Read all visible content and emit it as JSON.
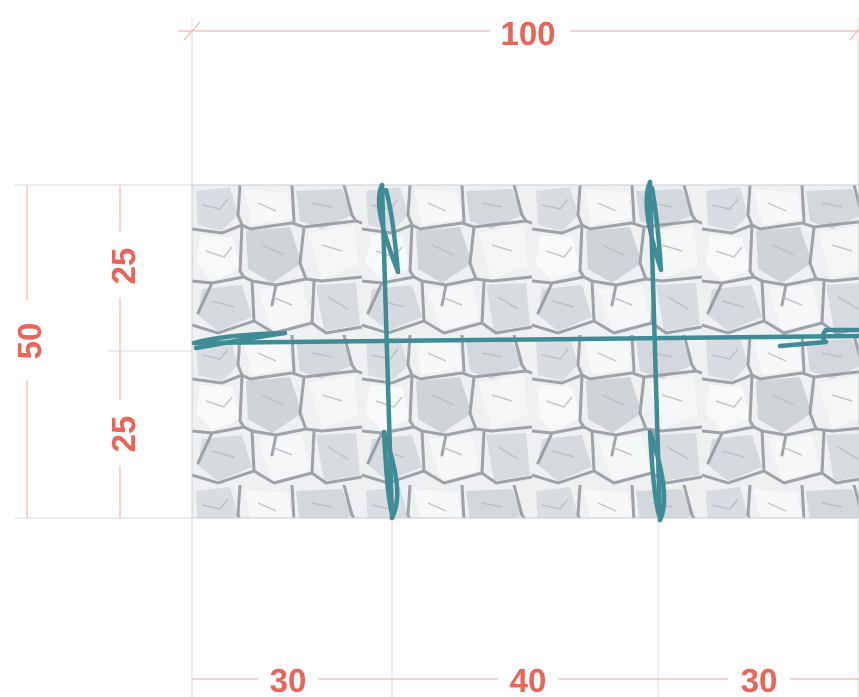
{
  "colors": {
    "dimension_text": "#e8655a",
    "rope": "#3f8c96",
    "panel_base": "#eef0f2",
    "panel_joints": "#8f959c"
  },
  "dimensions": {
    "total_width": "100",
    "total_height": "50",
    "upper_half": "25",
    "lower_half": "25",
    "left_segment": "30",
    "middle_segment": "40",
    "right_segment": "30"
  }
}
